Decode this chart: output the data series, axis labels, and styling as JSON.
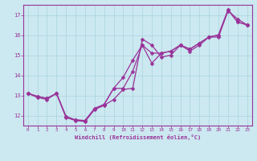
{
  "xlabel": "Windchill (Refroidissement éolien,°C)",
  "bg_color": "#cce8f0",
  "line_color": "#993399",
  "grid_color": "#aad4dc",
  "x_ticks": [
    0,
    1,
    2,
    3,
    4,
    5,
    6,
    7,
    8,
    9,
    10,
    11,
    12,
    13,
    14,
    15,
    16,
    17,
    18,
    19,
    20,
    21,
    22,
    23
  ],
  "y_ticks": [
    12,
    13,
    14,
    15,
    16,
    17
  ],
  "xlim": [
    -0.5,
    23.5
  ],
  "ylim": [
    11.5,
    17.5
  ],
  "series": [
    [
      13.1,
      12.9,
      12.8,
      13.1,
      11.9,
      11.75,
      11.7,
      12.3,
      12.5,
      12.8,
      13.3,
      13.35,
      15.8,
      15.5,
      14.9,
      15.0,
      15.5,
      15.2,
      15.5,
      15.9,
      15.9,
      17.2,
      16.8,
      16.5
    ],
    [
      13.1,
      12.95,
      12.85,
      13.1,
      11.95,
      11.78,
      11.75,
      12.35,
      12.55,
      13.35,
      13.9,
      14.75,
      15.5,
      15.1,
      15.1,
      15.2,
      15.5,
      15.3,
      15.6,
      15.9,
      16.0,
      17.25,
      16.65,
      16.5
    ],
    [
      13.1,
      12.95,
      12.85,
      13.1,
      11.95,
      11.78,
      11.75,
      12.35,
      12.55,
      13.35,
      13.35,
      14.2,
      15.5,
      14.6,
      15.1,
      15.2,
      15.5,
      15.3,
      15.6,
      15.9,
      16.0,
      17.25,
      16.65,
      16.5
    ]
  ],
  "marker_sizes": [
    2.5,
    2.5,
    2.5
  ],
  "linewidths": [
    0.9,
    0.9,
    0.9
  ]
}
